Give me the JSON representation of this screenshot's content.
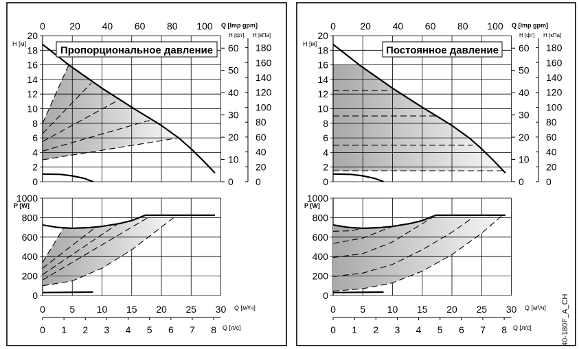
{
  "axes": {
    "h_label": "H [м]",
    "h_ticks": [
      0,
      2,
      4,
      6,
      8,
      10,
      12,
      14,
      16,
      18,
      20
    ],
    "gpm_label": "Q [Imp gpm]",
    "gpm_ticks": [
      0,
      20,
      40,
      60,
      80,
      100
    ],
    "ft_label": "H [фт]",
    "ft_ticks": [
      0,
      10,
      20,
      30,
      40,
      50,
      60
    ],
    "kpa_label": "H [кПа]",
    "kpa_ticks": [
      0,
      20,
      40,
      60,
      80,
      100,
      120,
      140,
      160,
      180
    ],
    "p_label": "P [W]",
    "p_ticks": [
      0,
      200,
      400,
      600,
      800,
      1000
    ],
    "q_label": "Q [м³/ч]",
    "q_ticks": [
      0,
      5,
      10,
      15,
      20,
      25,
      30
    ],
    "ls_label": "Q [л/с]",
    "ls_ticks": [
      0,
      1,
      2,
      3,
      4,
      5,
      6,
      7,
      8
    ]
  },
  "figure_code": "40-180F_A_CH",
  "chart_data": [
    {
      "type": "line",
      "title": "Пропорциональное давление",
      "xlabel": "Q [м³/ч]",
      "ylabel_top": "H [м]",
      "ylabel_bottom": "P [W]",
      "xlim": [
        0,
        30
      ],
      "ylim_top": [
        0,
        20
      ],
      "ylim_bottom": [
        0,
        1000
      ],
      "grid": true,
      "h_max": [
        [
          0,
          18.8
        ],
        [
          4.4,
          16
        ],
        [
          10,
          12.8
        ],
        [
          15,
          10.2
        ],
        [
          20,
          7.7
        ],
        [
          22.9,
          6
        ],
        [
          25,
          4.5
        ],
        [
          27,
          2.9
        ],
        [
          29,
          1.2
        ]
      ],
      "h_min": [
        [
          0,
          1.05
        ],
        [
          3,
          1.0
        ],
        [
          5,
          0.8
        ],
        [
          7,
          0.45
        ],
        [
          8.5,
          0
        ]
      ],
      "h_dashed": [
        [
          [
            0,
            8
          ],
          [
            4.4,
            16
          ]
        ],
        [
          [
            0,
            6.6
          ],
          [
            8.2,
            13.5
          ]
        ],
        [
          [
            0,
            5.5
          ],
          [
            12.6,
            11.1
          ]
        ],
        [
          [
            0,
            4.2
          ],
          [
            18,
            8.4
          ]
        ],
        [
          [
            0,
            3
          ],
          [
            22.9,
            6
          ]
        ]
      ],
      "h_region": [
        [
          0,
          3
        ],
        [
          22.9,
          6
        ],
        [
          20,
          7.7
        ],
        [
          15,
          10.2
        ],
        [
          10,
          12.8
        ],
        [
          4.4,
          16
        ],
        [
          0,
          8
        ]
      ],
      "p_max": [
        [
          0,
          725
        ],
        [
          2.5,
          700
        ],
        [
          5,
          690
        ],
        [
          8,
          698
        ],
        [
          10,
          710
        ],
        [
          13,
          740
        ],
        [
          15,
          770
        ],
        [
          17.3,
          825
        ],
        [
          29,
          825
        ]
      ],
      "p_min": [
        [
          0,
          30
        ],
        [
          8.5,
          35
        ]
      ],
      "p_dashed": [
        [
          [
            0,
            340
          ],
          [
            3.5,
            690
          ]
        ],
        [
          [
            0,
            280
          ],
          [
            9,
            705
          ]
        ],
        [
          [
            0,
            215
          ],
          [
            13,
            750
          ]
        ],
        [
          [
            0,
            160
          ],
          [
            18,
            810
          ]
        ],
        [
          [
            0,
            100
          ],
          [
            5,
            150
          ],
          [
            10,
            280
          ],
          [
            15,
            470
          ],
          [
            22.5,
            820
          ]
        ]
      ],
      "p_region": [
        [
          0,
          100
        ],
        [
          5,
          150
        ],
        [
          10,
          280
        ],
        [
          15,
          470
        ],
        [
          22.5,
          820
        ],
        [
          17.3,
          825
        ],
        [
          15,
          770
        ],
        [
          10,
          710
        ],
        [
          5,
          690
        ],
        [
          3.5,
          690
        ],
        [
          0,
          340
        ]
      ]
    },
    {
      "type": "line",
      "title": "Постоянное давление",
      "xlabel": "Q [м³/ч]",
      "ylabel_top": "H [м]",
      "ylabel_bottom": "P [W]",
      "xlim": [
        0,
        30
      ],
      "ylim_top": [
        0,
        20
      ],
      "ylim_bottom": [
        0,
        1000
      ],
      "grid": true,
      "h_max": [
        [
          0,
          18.8
        ],
        [
          4.4,
          16
        ],
        [
          10,
          12.8
        ],
        [
          15,
          10.2
        ],
        [
          20,
          7.7
        ],
        [
          22.9,
          6
        ],
        [
          25,
          4.5
        ],
        [
          27,
          2.9
        ],
        [
          29,
          1.2
        ]
      ],
      "h_min": [
        [
          0,
          1.05
        ],
        [
          3,
          1.0
        ],
        [
          5,
          0.8
        ],
        [
          7,
          0.45
        ],
        [
          8.5,
          0
        ]
      ],
      "h_dashed": [
        [
          [
            0,
            12.5
          ],
          [
            9.8,
            12.5
          ]
        ],
        [
          [
            0,
            9
          ],
          [
            17.3,
            9
          ]
        ],
        [
          [
            0,
            5
          ],
          [
            23.5,
            5
          ]
        ],
        [
          [
            0,
            1.5
          ],
          [
            28.6,
            1.5
          ]
        ]
      ],
      "h_region": [
        [
          0,
          1.5
        ],
        [
          28.6,
          1.5
        ],
        [
          27,
          2.9
        ],
        [
          25,
          4.5
        ],
        [
          22.9,
          6
        ],
        [
          20,
          7.7
        ],
        [
          15,
          10.2
        ],
        [
          10,
          12.8
        ],
        [
          4.4,
          16
        ],
        [
          0,
          16
        ]
      ],
      "p_max": [
        [
          0,
          725
        ],
        [
          2.5,
          700
        ],
        [
          5,
          690
        ],
        [
          8,
          698
        ],
        [
          10,
          710
        ],
        [
          13,
          740
        ],
        [
          15,
          770
        ],
        [
          17.3,
          825
        ],
        [
          29,
          825
        ]
      ],
      "p_min": [
        [
          0,
          30
        ],
        [
          8.5,
          35
        ]
      ],
      "p_dashed": [
        [
          [
            0,
            660
          ],
          [
            3,
            665
          ],
          [
            5,
            690
          ]
        ],
        [
          [
            0,
            535
          ],
          [
            5,
            590
          ],
          [
            10,
            710
          ]
        ],
        [
          [
            0,
            390
          ],
          [
            5,
            430
          ],
          [
            10,
            550
          ],
          [
            17.3,
            825
          ]
        ],
        [
          [
            0,
            195
          ],
          [
            5,
            230
          ],
          [
            10,
            320
          ],
          [
            15,
            470
          ],
          [
            20,
            650
          ],
          [
            23.5,
            800
          ]
        ],
        [
          [
            0,
            45
          ],
          [
            5,
            70
          ],
          [
            10,
            130
          ],
          [
            15,
            250
          ],
          [
            20,
            420
          ],
          [
            25,
            640
          ],
          [
            28.5,
            825
          ]
        ]
      ],
      "p_region": [
        [
          0,
          45
        ],
        [
          5,
          70
        ],
        [
          10,
          130
        ],
        [
          15,
          250
        ],
        [
          20,
          420
        ],
        [
          25,
          640
        ],
        [
          28.5,
          825
        ],
        [
          17.3,
          825
        ],
        [
          15,
          770
        ],
        [
          10,
          710
        ],
        [
          5,
          690
        ],
        [
          2.5,
          700
        ],
        [
          0,
          725
        ]
      ]
    }
  ]
}
